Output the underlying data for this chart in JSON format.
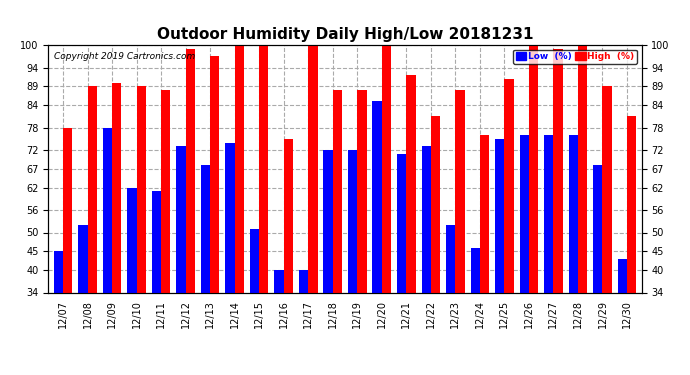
{
  "title": "Outdoor Humidity Daily High/Low 20181231",
  "copyright": "Copyright 2019 Cartronics.com",
  "dates": [
    "12/07",
    "12/08",
    "12/09",
    "12/10",
    "12/11",
    "12/12",
    "12/13",
    "12/14",
    "12/15",
    "12/16",
    "12/17",
    "12/18",
    "12/19",
    "12/20",
    "12/21",
    "12/22",
    "12/23",
    "12/24",
    "12/25",
    "12/26",
    "12/27",
    "12/28",
    "12/29",
    "12/30"
  ],
  "high": [
    78,
    89,
    90,
    89,
    88,
    99,
    97,
    100,
    100,
    75,
    100,
    88,
    88,
    100,
    92,
    81,
    88,
    76,
    91,
    100,
    99,
    100,
    89,
    81
  ],
  "low": [
    45,
    52,
    78,
    62,
    61,
    73,
    68,
    74,
    51,
    40,
    40,
    72,
    72,
    85,
    71,
    73,
    52,
    46,
    75,
    76,
    76,
    76,
    68,
    43
  ],
  "high_color": "#ff0000",
  "low_color": "#0000ff",
  "bg_color": "#ffffff",
  "grid_color": "#aaaaaa",
  "ylim_min": 34,
  "ylim_max": 100,
  "yticks": [
    34,
    40,
    45,
    50,
    56,
    62,
    67,
    72,
    78,
    84,
    89,
    94,
    100
  ],
  "bar_width": 0.38,
  "title_fontsize": 11,
  "tick_fontsize": 7,
  "legend_low_label": "Low  (%)",
  "legend_high_label": "High  (%)"
}
